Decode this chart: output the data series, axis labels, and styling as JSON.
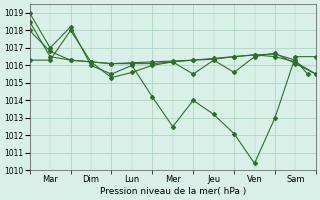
{
  "title": "",
  "xlabel": "Pression niveau de la mer( hPa )",
  "ylabel": "",
  "bg_color": "#d8f0e8",
  "grid_color": "#aacfba",
  "line_color": "#2d6e2d",
  "xlim": [
    0,
    7
  ],
  "ylim": [
    1010,
    1019.5
  ],
  "yticks": [
    1010,
    1011,
    1012,
    1013,
    1014,
    1015,
    1016,
    1017,
    1018,
    1019
  ],
  "xtick_labels": [
    "Mar",
    "Dim",
    "Lun",
    "Mer",
    "Jeu",
    "Ven",
    "Sam"
  ],
  "series": [
    {
      "x": [
        0,
        0.5,
        1.0,
        1.5,
        2.0,
        2.5,
        3.0,
        3.5,
        4.0,
        4.5,
        5.0,
        5.5,
        6.0,
        6.5,
        7.0
      ],
      "y": [
        1019.0,
        1017.0,
        1018.2,
        1016.0,
        1015.5,
        1016.0,
        1014.2,
        1012.5,
        1014.0,
        1013.2,
        1012.1,
        1010.4,
        1013.0,
        1016.5,
        1016.5
      ]
    },
    {
      "x": [
        0,
        0.5,
        1.0,
        1.5,
        2.0,
        2.5,
        3.0,
        3.5,
        4.0,
        4.5,
        5.0,
        5.5,
        6.0,
        6.5,
        7.0
      ],
      "y": [
        1016.3,
        1016.3,
        1018.0,
        1016.2,
        1015.3,
        1015.6,
        1016.0,
        1016.2,
        1015.5,
        1016.3,
        1015.6,
        1016.5,
        1016.7,
        1016.1,
        1015.5
      ]
    },
    {
      "x": [
        0,
        0.5,
        1.0,
        1.5,
        2.0,
        2.5,
        3.0,
        3.5,
        4.0,
        4.5,
        5.0,
        5.5,
        6.0,
        6.5,
        7.0
      ],
      "y": [
        1018.0,
        1016.8,
        1016.3,
        1016.2,
        1016.1,
        1016.1,
        1016.1,
        1016.2,
        1016.3,
        1016.4,
        1016.5,
        1016.6,
        1016.5,
        1016.2,
        1015.5
      ]
    },
    {
      "x": [
        0,
        0.5,
        1.0,
        1.5,
        2.0,
        2.5,
        3.0,
        3.5,
        4.0,
        4.5,
        5.0,
        5.5,
        6.0,
        6.5,
        6.8
      ],
      "y": [
        1018.5,
        1016.5,
        1016.3,
        1016.2,
        1016.1,
        1016.15,
        1016.2,
        1016.25,
        1016.3,
        1016.35,
        1016.5,
        1016.6,
        1016.65,
        1016.3,
        1015.5
      ]
    }
  ]
}
